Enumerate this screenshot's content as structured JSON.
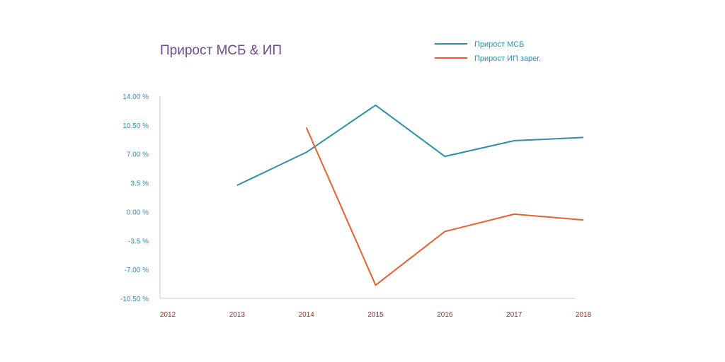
{
  "colors": {
    "background": "#ffffff",
    "title": "#6a4a8c",
    "axis": "#c9c9c9",
    "ytick_text": "#2a8faa",
    "xtick_text": "#b02a1a",
    "series_msb": "#2a8faa",
    "series_ip": "#e8602a"
  },
  "chart_data": {
    "type": "line",
    "title": "Прирост МСБ & ИП",
    "xlabel": "",
    "ylabel": "",
    "x": [
      2012,
      2013,
      2014,
      2015,
      2016,
      2017,
      2018
    ],
    "x_tick_labels": [
      "2012",
      "2013",
      "2014",
      "2015",
      "2016",
      "2017",
      "2018"
    ],
    "ylim": [
      -10.5,
      14
    ],
    "y_ticks": [
      14,
      10.5,
      7,
      3.5,
      0,
      -3.5,
      -7,
      -10.5
    ],
    "y_tick_labels": [
      "14.00 %",
      "10.50 %",
      "7.00 %",
      "3.5 %",
      "0.00 %",
      "-3.5 %",
      "-7.00 %",
      "-10.50 %"
    ],
    "grid": false,
    "legend": "top-right",
    "series": [
      {
        "name": "Прирост МСБ",
        "color": "#2a8faa",
        "values": [
          null,
          3.2,
          7.2,
          12.9,
          6.7,
          8.6,
          9.0
        ]
      },
      {
        "name": "Прирост ИП зарег.",
        "color": "#e8602a",
        "values": [
          null,
          null,
          10.2,
          -8.9,
          -2.4,
          -0.3,
          -1.0
        ]
      }
    ]
  }
}
